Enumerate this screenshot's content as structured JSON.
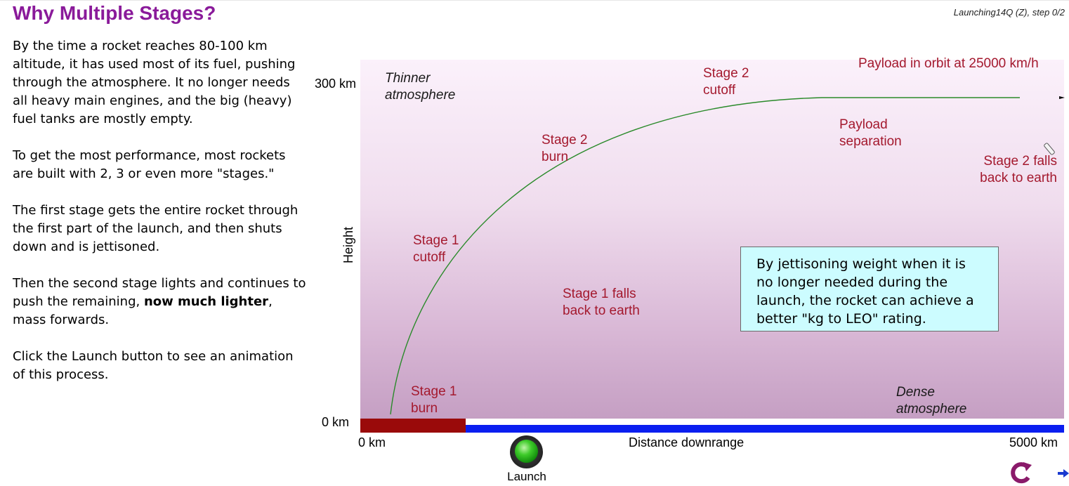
{
  "header": {
    "title": "Why Multiple Stages?",
    "step": "Launching14Q (Z), step 0/2"
  },
  "text": {
    "p1": "By the time a rocket reaches 80-100 km altitude, it has used most of its fuel, pushing through the atmosphere. It no longer needs all heavy main engines, and the big (heavy) fuel tanks are mostly empty.",
    "p2": "To get the most performance, most rockets are built with 2, 3 or even more \"stages.\"",
    "p3": "The first stage gets the entire rocket through the first part of the launch, and then shuts down and is jettisoned.",
    "p4_before": "Then the second stage lights and continues to push the remaining, ",
    "p4_bold": "now much lighter",
    "p4_after": ", mass forwards.",
    "p5": "Click the Launch button to see an animation of this process."
  },
  "diagram": {
    "y_axis": {
      "title": "Height",
      "top": "300 km",
      "bottom": "0 km"
    },
    "x_axis": {
      "title": "Distance downrange",
      "left": "0 km",
      "right": "5000 km"
    },
    "labels": {
      "thinner_1": "Thinner",
      "thinner_2": "atmosphere",
      "dense_1": "Dense",
      "dense_2": "atmosphere",
      "s1burn_1": "Stage 1",
      "s1burn_2": "burn",
      "s1cutoff_1": "Stage 1",
      "s1cutoff_2": "cutoff",
      "s1falls_1": "Stage 1 falls",
      "s1falls_2": "back to earth",
      "s2burn_1": "Stage 2",
      "s2burn_2": "burn",
      "s2cutoff_1": "Stage 2",
      "s2cutoff_2": "cutoff",
      "payload_sep_1": "Payload",
      "payload_sep_2": "separation",
      "payload_orbit": "Payload in orbit at 25000 km/h",
      "s2falls_1": "Stage 2 falls",
      "s2falls_2": "back to earth"
    },
    "callout": "By jettisoning weight when it is no longer needed during the launch, the rocket can achieve a better \"kg to LEO\" rating.",
    "colors": {
      "trajectory": "#2a8a2a",
      "label": "#a4192e",
      "ground": "#0a1ef0",
      "launch_pad": "#9a0a0a",
      "callout_bg": "#ccfcff",
      "title": "#8a1a9a"
    }
  },
  "controls": {
    "launch_label": "Launch",
    "launch_icon": "green-button-icon",
    "reset_icon": "reset-arrow-icon",
    "next_icon": "next-arrow-icon"
  }
}
